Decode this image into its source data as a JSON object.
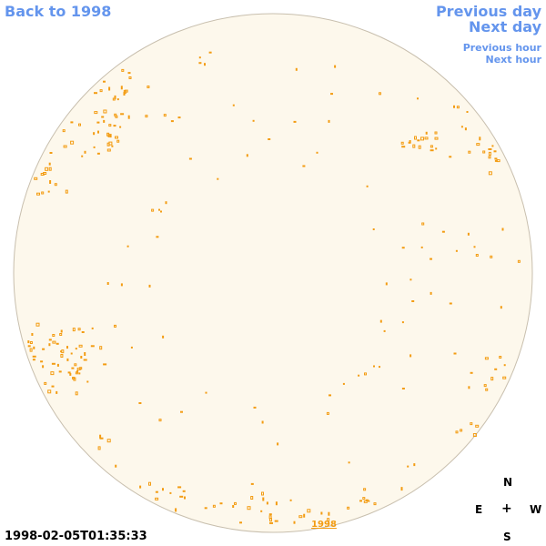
{
  "nav": {
    "back": "Back to 1998",
    "prev_day": "Previous day",
    "next_day": "Next day",
    "prev_hour": "Previous hour",
    "next_hour": "Next hour"
  },
  "timestamp": "1998-02-05T01:35:33",
  "disk": {
    "year_label": "1998",
    "fill_color": "#fdf8ec",
    "edge_color": "#c8bfae",
    "feature_color": "#f39c12"
  },
  "compass": {
    "n": "N",
    "e": "E",
    "center": "+",
    "w": "W",
    "s": "S"
  },
  "colors": {
    "link": "#6495ed",
    "text": "#000000"
  }
}
